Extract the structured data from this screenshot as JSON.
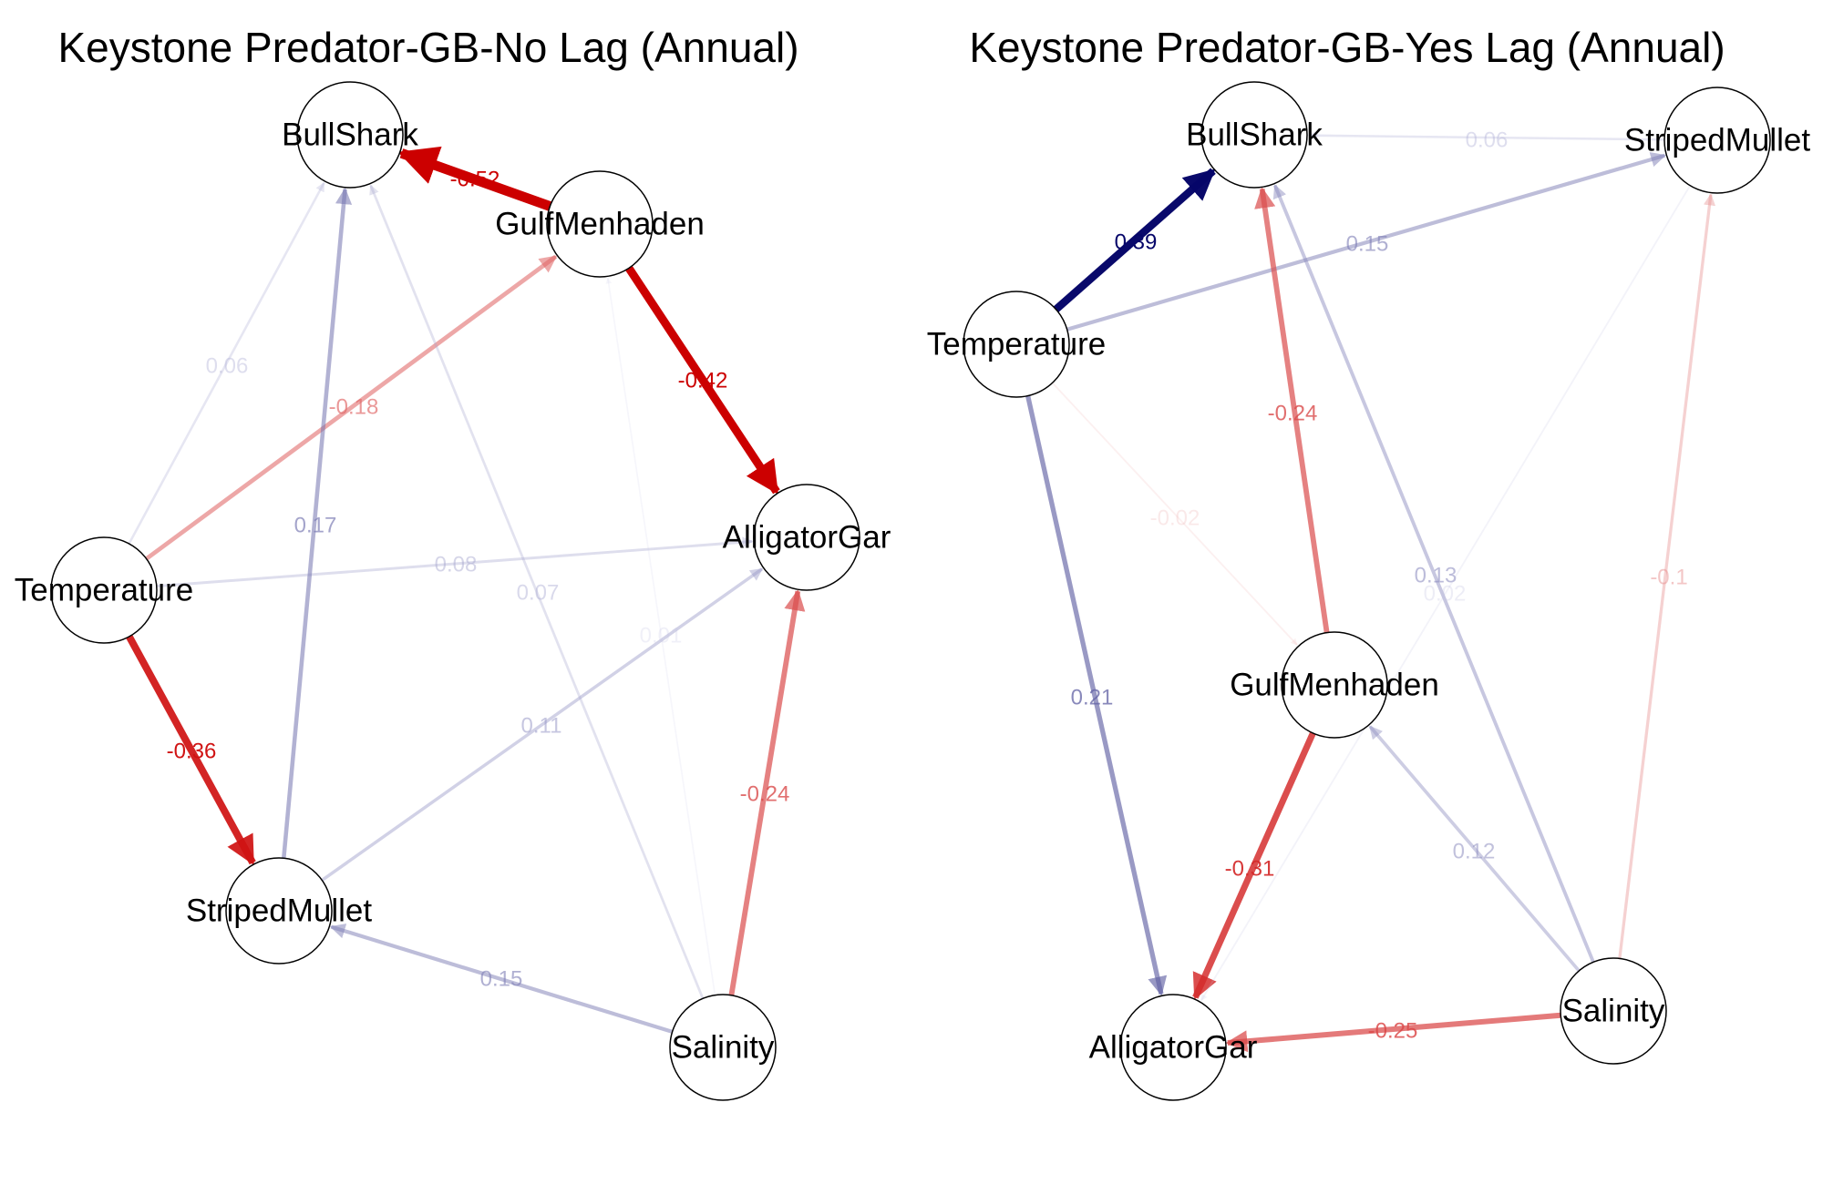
{
  "panels": [
    {
      "id": "nolag",
      "title": "Keystone Predator-GB-No Lag (Annual)",
      "nodes": [
        {
          "id": "BullShark",
          "label": "BullShark"
        },
        {
          "id": "GulfMenhaden",
          "label": "GulfMenhaden"
        },
        {
          "id": "AlligatorGar",
          "label": "AlligatorGar"
        },
        {
          "id": "Temperature",
          "label": "Temperature"
        },
        {
          "id": "StripedMullet",
          "label": "StripedMullet"
        },
        {
          "id": "Salinity",
          "label": "Salinity"
        }
      ],
      "edges": [
        {
          "from": "GulfMenhaden",
          "to": "BullShark",
          "label": "-0.52",
          "weight": -0.52
        },
        {
          "from": "GulfMenhaden",
          "to": "AlligatorGar",
          "label": "-0.42",
          "weight": -0.42
        },
        {
          "from": "Temperature",
          "to": "BullShark",
          "label": "0.06",
          "weight": 0.06
        },
        {
          "from": "Temperature",
          "to": "GulfMenhaden",
          "label": "-0.18",
          "weight": -0.18
        },
        {
          "from": "Temperature",
          "to": "AlligatorGar",
          "label": "0.08",
          "weight": 0.08
        },
        {
          "from": "Temperature",
          "to": "StripedMullet",
          "label": "-0.36",
          "weight": -0.36
        },
        {
          "from": "StripedMullet",
          "to": "BullShark",
          "label": "0.17",
          "weight": 0.17
        },
        {
          "from": "StripedMullet",
          "to": "AlligatorGar",
          "label": "0.11",
          "weight": 0.11
        },
        {
          "from": "Salinity",
          "to": "BullShark",
          "label": "0.07",
          "weight": 0.07
        },
        {
          "from": "Salinity",
          "to": "StripedMullet",
          "label": "0.15",
          "weight": 0.15
        },
        {
          "from": "Salinity",
          "to": "AlligatorGar",
          "label": "-0.24",
          "weight": -0.24
        },
        {
          "from": "Salinity",
          "to": "GulfMenhaden",
          "label": "0.01",
          "weight": 0.01
        }
      ]
    },
    {
      "id": "yeslag",
      "title": "Keystone Predator-GB-Yes Lag (Annual)",
      "nodes": [
        {
          "id": "BullShark",
          "label": "BullShark"
        },
        {
          "id": "StripedMullet",
          "label": "StripedMullet"
        },
        {
          "id": "Temperature",
          "label": "Temperature"
        },
        {
          "id": "GulfMenhaden",
          "label": "GulfMenhaden"
        },
        {
          "id": "AlligatorGar",
          "label": "AlligatorGar"
        },
        {
          "id": "Salinity",
          "label": "Salinity"
        }
      ],
      "edges": [
        {
          "from": "StripedMullet",
          "to": "BullShark",
          "label": "0.06",
          "weight": 0.06
        },
        {
          "from": "Temperature",
          "to": "BullShark",
          "label": "0.39",
          "weight": 0.39
        },
        {
          "from": "Temperature",
          "to": "StripedMullet",
          "label": "0.15",
          "weight": 0.15
        },
        {
          "from": "Temperature",
          "to": "GulfMenhaden",
          "label": "-0.02",
          "weight": -0.02
        },
        {
          "from": "Temperature",
          "to": "AlligatorGar",
          "label": "0.21",
          "weight": 0.21
        },
        {
          "from": "GulfMenhaden",
          "to": "BullShark",
          "label": "-0.24",
          "weight": -0.24
        },
        {
          "from": "GulfMenhaden",
          "to": "AlligatorGar",
          "label": "-0.31",
          "weight": -0.31
        },
        {
          "from": "Salinity",
          "to": "BullShark",
          "label": "0.13",
          "weight": 0.13
        },
        {
          "from": "Salinity",
          "to": "StripedMullet",
          "label": "-0.1",
          "weight": -0.1
        },
        {
          "from": "Salinity",
          "to": "GulfMenhaden",
          "label": "0.12",
          "weight": 0.12
        },
        {
          "from": "Salinity",
          "to": "AlligatorGar",
          "label": "-0.25",
          "weight": -0.25
        },
        {
          "from": "StripedMullet",
          "to": "AlligatorGar",
          "label": "0.02",
          "weight": 0.02
        }
      ]
    }
  ],
  "colors": {
    "positive_strong": "#000066",
    "negative_strong": "#cc0000",
    "node_fill": "#ffffff",
    "node_stroke": "#000000"
  }
}
